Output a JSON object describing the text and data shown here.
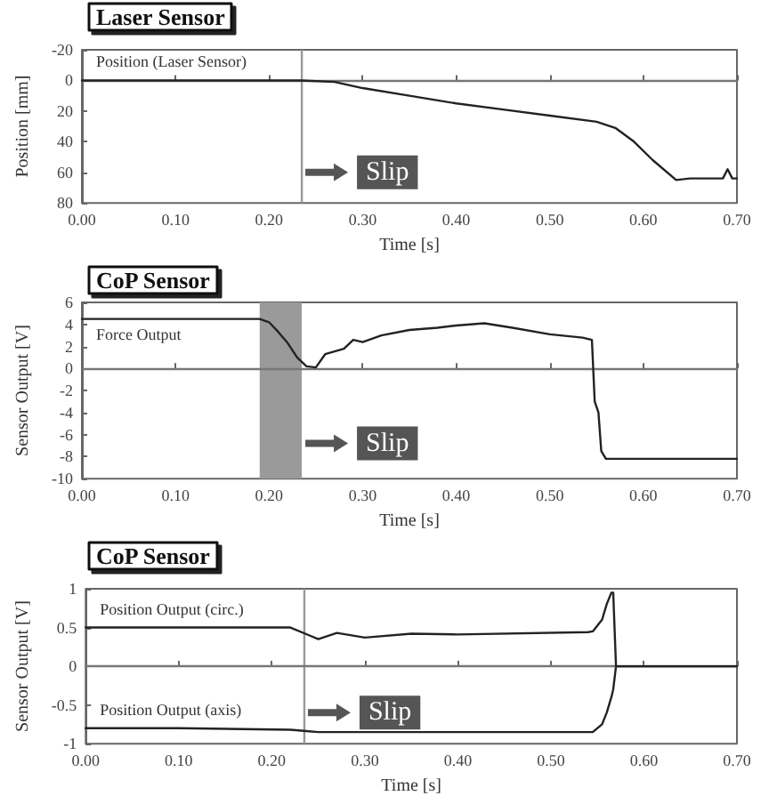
{
  "chart_data": [
    {
      "type": "line",
      "title": "Laser Sensor",
      "xlabel": "Time [s]",
      "ylabel": "Position [mm]",
      "marker": "none",
      "xlim": [
        0,
        0.7
      ],
      "xticks": [
        {
          "value": 0,
          "label": "0.00"
        },
        {
          "value": 0.1,
          "label": "0.10"
        },
        {
          "value": 0.2,
          "label": "0.20"
        },
        {
          "value": 0.3,
          "label": "0.30"
        },
        {
          "value": 0.4,
          "label": "0.40"
        },
        {
          "value": 0.5,
          "label": "0.50"
        },
        {
          "value": 0.6,
          "label": "0.60"
        },
        {
          "value": 0.7,
          "label": "0.70"
        }
      ],
      "ylim": [
        80,
        -20
      ],
      "yticks": [
        -20,
        0,
        20,
        40,
        60,
        80
      ],
      "x": [
        0,
        0.1,
        0.2,
        0.235,
        0.27,
        0.3,
        0.35,
        0.4,
        0.45,
        0.5,
        0.55,
        0.57,
        0.59,
        0.61,
        0.635,
        0.65,
        0.685,
        0.69,
        0.695,
        0.7
      ],
      "series": [
        {
          "name": "Position (Laser Sensor)",
          "color": "#222222",
          "values": [
            0,
            0,
            0,
            0,
            1,
            5,
            10,
            15,
            19,
            23,
            27,
            31,
            40,
            52,
            65,
            64,
            64,
            58,
            64,
            64
          ]
        }
      ],
      "ref_lines": [
        {
          "axis": "y",
          "value": 0,
          "color": "#777777"
        },
        {
          "axis": "x",
          "value": 0.235,
          "color": "#999999",
          "label": "Slip"
        }
      ]
    },
    {
      "type": "line",
      "title": "CoP Sensor",
      "xlabel": "Time [s]",
      "ylabel": "Sensor Output [V]",
      "marker": "none",
      "xlim": [
        0,
        0.7
      ],
      "xticks": [
        {
          "value": 0,
          "label": "0.00"
        },
        {
          "value": 0.1,
          "label": "0.10"
        },
        {
          "value": 0.2,
          "label": "0.20"
        },
        {
          "value": 0.3,
          "label": "0.30"
        },
        {
          "value": 0.4,
          "label": "0.40"
        },
        {
          "value": 0.5,
          "label": "0.50"
        },
        {
          "value": 0.6,
          "label": "0.60"
        },
        {
          "value": 0.7,
          "label": "0.70"
        }
      ],
      "ylim": [
        -10,
        6
      ],
      "yticks": [
        -10,
        -8,
        -6,
        -4,
        -2,
        0,
        2,
        4,
        6
      ],
      "x": [
        0,
        0.1,
        0.19,
        0.2,
        0.21,
        0.22,
        0.23,
        0.24,
        0.25,
        0.26,
        0.28,
        0.29,
        0.3,
        0.32,
        0.35,
        0.38,
        0.4,
        0.43,
        0.46,
        0.5,
        0.535,
        0.545,
        0.548,
        0.552,
        0.555,
        0.56,
        0.7
      ],
      "series": [
        {
          "name": "Force Output",
          "color": "#222222",
          "values": [
            4.5,
            4.5,
            4.5,
            4.2,
            3.3,
            2.3,
            1.0,
            0.2,
            0.1,
            1.3,
            1.8,
            2.6,
            2.4,
            3.0,
            3.5,
            3.7,
            3.9,
            4.1,
            3.7,
            3.1,
            2.8,
            2.6,
            -3,
            -4,
            -7.5,
            -8.2,
            -8.2
          ]
        }
      ],
      "ref_lines": [
        {
          "axis": "y",
          "value": 0,
          "color": "#777777"
        }
      ],
      "bands": [
        {
          "axis": "x",
          "from": 0.19,
          "to": 0.235,
          "color": "#9a9a9a",
          "label": "Slip"
        }
      ]
    },
    {
      "type": "line",
      "title": "CoP Sensor",
      "xlabel": "Time [s]",
      "ylabel": "Sensor Output [V]",
      "marker": "none",
      "xlim": [
        0,
        0.7
      ],
      "xticks": [
        {
          "value": 0,
          "label": "0.00"
        },
        {
          "value": 0.1,
          "label": "0.10"
        },
        {
          "value": 0.2,
          "label": "0.20"
        },
        {
          "value": 0.3,
          "label": "0.30"
        },
        {
          "value": 0.4,
          "label": "0.40"
        },
        {
          "value": 0.5,
          "label": "0.50"
        },
        {
          "value": 0.6,
          "label": "0.60"
        },
        {
          "value": 0.7,
          "label": "0.70"
        }
      ],
      "ylim": [
        -1,
        1
      ],
      "yticks": [
        -1,
        -0.5,
        0,
        0.5,
        1
      ],
      "x": [
        0,
        0.1,
        0.22,
        0.24,
        0.25,
        0.27,
        0.3,
        0.35,
        0.4,
        0.54,
        0.545,
        0.555,
        0.56,
        0.565,
        0.567,
        0.57,
        0.6,
        0.7
      ],
      "series": [
        {
          "name": "Position Output (circ.)",
          "color": "#222222",
          "values": [
            0.5,
            0.5,
            0.5,
            0.4,
            0.35,
            0.43,
            0.37,
            0.42,
            0.41,
            0.44,
            0.45,
            0.6,
            0.8,
            0.95,
            0.95,
            0,
            0,
            0
          ]
        },
        {
          "name": "Position Output (axis)",
          "color": "#222222",
          "values": [
            -0.8,
            -0.8,
            -0.82,
            -0.84,
            -0.85,
            -0.85,
            -0.85,
            -0.85,
            -0.85,
            -0.85,
            -0.85,
            -0.75,
            -0.6,
            -0.4,
            -0.3,
            0,
            0,
            0
          ]
        }
      ],
      "ref_lines": [
        {
          "axis": "y",
          "value": 0,
          "color": "#777777"
        },
        {
          "axis": "x",
          "value": 0.235,
          "color": "#999999",
          "label": "Slip"
        }
      ]
    }
  ]
}
